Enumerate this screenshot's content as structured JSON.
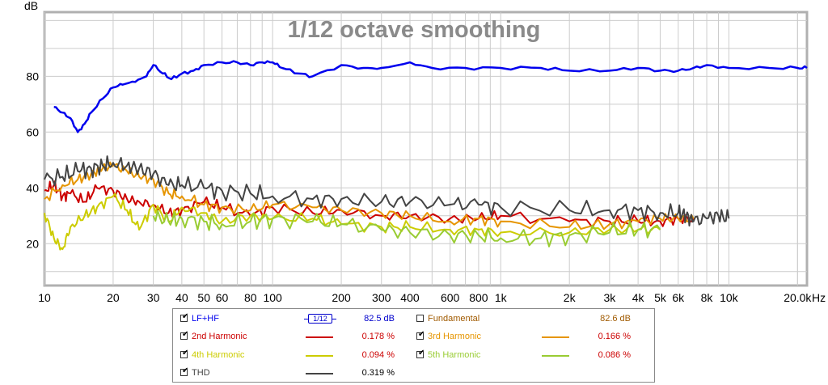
{
  "chart_data": {
    "type": "line",
    "title": "1/12 octave smoothing",
    "ylabel": "dB",
    "xlabel": "Hz",
    "x_scale": "log",
    "xlim": [
      10,
      22000
    ],
    "ylim": [
      5,
      103
    ],
    "grid": true,
    "x_ticks": [
      {
        "value": 10,
        "label": "10"
      },
      {
        "value": 20,
        "label": "20"
      },
      {
        "value": 30,
        "label": "30"
      },
      {
        "value": 40,
        "label": "40"
      },
      {
        "value": 50,
        "label": "50"
      },
      {
        "value": 60,
        "label": "60"
      },
      {
        "value": 80,
        "label": "80"
      },
      {
        "value": 100,
        "label": "100"
      },
      {
        "value": 200,
        "label": "200"
      },
      {
        "value": 300,
        "label": "300"
      },
      {
        "value": 400,
        "label": "400"
      },
      {
        "value": 600,
        "label": "600"
      },
      {
        "value": 800,
        "label": "800"
      },
      {
        "value": 1000,
        "label": "1k"
      },
      {
        "value": 2000,
        "label": "2k"
      },
      {
        "value": 3000,
        "label": "3k"
      },
      {
        "value": 4000,
        "label": "4k"
      },
      {
        "value": 5000,
        "label": "5k"
      },
      {
        "value": 6000,
        "label": "6k"
      },
      {
        "value": 8000,
        "label": "8k"
      },
      {
        "value": 10000,
        "label": "10k"
      },
      {
        "value": 20000,
        "label": "20.0k"
      }
    ],
    "y_ticks": [
      20,
      40,
      60,
      80
    ],
    "series": [
      {
        "name": "LF+HF",
        "color": "#0000ee",
        "x": [
          11,
          12,
          13,
          14,
          15,
          16,
          18,
          20,
          22,
          25,
          28,
          30,
          33,
          36,
          40,
          45,
          50,
          60,
          70,
          80,
          90,
          100,
          110,
          130,
          150,
          200,
          250,
          300,
          400,
          500,
          700,
          1000,
          1500,
          2000,
          3000,
          4000,
          5000,
          6000,
          7000,
          8000,
          10000,
          15000,
          20000,
          22000
        ],
        "y": [
          69,
          67,
          65,
          60,
          63,
          67,
          72,
          76,
          77,
          78,
          80,
          84,
          81,
          79,
          81,
          82,
          84,
          85,
          85,
          84,
          85,
          85,
          83,
          81,
          80,
          84,
          83,
          83,
          85,
          83,
          83,
          83,
          83,
          82,
          82,
          83,
          82,
          82,
          83,
          84,
          83,
          83,
          83,
          83
        ]
      },
      {
        "name": "2nd Harmonic",
        "color": "#cc0000",
        "x": [
          10,
          11,
          12,
          13,
          15,
          17,
          20,
          23,
          26,
          30,
          35,
          40,
          50,
          60,
          80,
          100,
          150,
          200,
          300,
          400,
          600,
          800,
          1000,
          2000,
          3000,
          4000,
          5000,
          6000,
          7000
        ],
        "y": [
          39,
          41,
          37,
          38,
          35,
          40,
          39,
          36,
          35,
          34,
          31,
          32,
          35,
          33,
          30,
          33,
          31,
          32,
          30,
          30,
          29,
          29,
          30,
          28,
          28,
          28,
          28,
          29,
          29
        ]
      },
      {
        "name": "3rd Harmonic",
        "color": "#e69500",
        "x": [
          10,
          12,
          14,
          16,
          18,
          20,
          23,
          26,
          30,
          35,
          40,
          50,
          60,
          80,
          100,
          150,
          200,
          300,
          400,
          600,
          800,
          1000,
          2000,
          3000,
          4000,
          5000,
          6000,
          7000
        ],
        "y": [
          36,
          41,
          43,
          45,
          47,
          48,
          46,
          44,
          43,
          38,
          37,
          34,
          33,
          32,
          34,
          33,
          32,
          31,
          30,
          28,
          29,
          28,
          26,
          27,
          28,
          29,
          29,
          29
        ]
      },
      {
        "name": "4th Harmonic",
        "color": "#cccc00",
        "x": [
          10,
          11,
          12,
          13,
          15,
          17,
          20,
          23,
          26,
          30,
          35,
          40,
          50,
          60,
          80,
          100,
          150,
          200,
          300,
          400,
          600,
          800,
          1000,
          2000,
          3000,
          4000,
          5000
        ],
        "y": [
          31,
          22,
          18,
          26,
          30,
          33,
          37,
          32,
          25,
          34,
          28,
          33,
          31,
          28,
          30,
          29,
          29,
          27,
          26,
          26,
          25,
          25,
          24,
          24,
          25,
          25,
          25
        ]
      },
      {
        "name": "5th Harmonic",
        "color": "#99cc33",
        "x": [
          30,
          35,
          40,
          50,
          60,
          80,
          100,
          150,
          200,
          300,
          400,
          600,
          800,
          1000,
          1500,
          2000,
          3000,
          4000,
          5000
        ],
        "y": [
          30,
          28,
          29,
          28,
          27,
          28,
          29,
          28,
          27,
          25,
          24,
          23,
          23,
          22,
          22,
          23,
          24,
          25,
          25
        ]
      },
      {
        "name": "THD",
        "color": "#444444",
        "x": [
          10,
          12,
          14,
          16,
          18,
          20,
          23,
          26,
          30,
          35,
          40,
          50,
          60,
          80,
          100,
          150,
          200,
          300,
          400,
          600,
          800,
          1000,
          2000,
          3000,
          4000,
          5000,
          6000,
          6500,
          7000,
          8000,
          9000,
          10000
        ],
        "y": [
          43,
          44,
          46,
          47,
          48,
          49,
          48,
          47,
          45,
          41,
          41,
          40,
          39,
          38,
          37,
          36,
          36,
          35,
          35,
          34,
          34,
          33,
          32,
          32,
          32,
          31,
          31,
          30,
          28,
          29,
          30,
          29
        ]
      }
    ]
  },
  "legend": {
    "items": [
      {
        "label": "LF+HF",
        "checked": true,
        "color": "#0000ee",
        "value": "82.5 dB",
        "swatch": "smoothing"
      },
      {
        "label": "Fundamental",
        "checked": false,
        "color": "#a05a00",
        "value": "82.6 dB",
        "swatch": "none"
      },
      {
        "label": "2nd Harmonic",
        "checked": true,
        "color": "#cc0000",
        "value": "0.178 %",
        "swatch": "line"
      },
      {
        "label": "3rd Harmonic",
        "checked": true,
        "color": "#e69500",
        "value": "0.166 %",
        "swatch": "line"
      },
      {
        "label": "4th Harmonic",
        "checked": true,
        "color": "#cccc00",
        "value": "0.094 %",
        "swatch": "line"
      },
      {
        "label": "5th Harmonic",
        "checked": true,
        "color": "#99cc33",
        "value": "0.086 %",
        "swatch": "line"
      },
      {
        "label": "THD",
        "checked": true,
        "color": "#444444",
        "value": "0.319 %",
        "swatch": "line"
      }
    ],
    "smoothing_badge": "1/12"
  }
}
